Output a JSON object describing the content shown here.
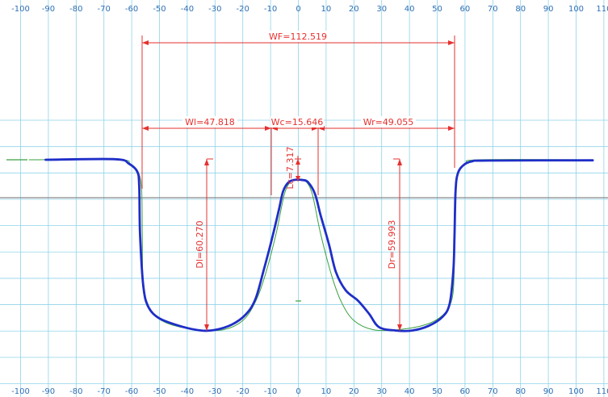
{
  "axis": {
    "x_ticks": [
      "-100",
      "-90",
      "-80",
      "-70",
      "-60",
      "-50",
      "-40",
      "-30",
      "-20",
      "-10",
      "0",
      "10",
      "20",
      "30",
      "40",
      "50",
      "60",
      "70",
      "80",
      "90",
      "100",
      "110"
    ],
    "x_tick_values": [
      -100,
      -90,
      -80,
      -70,
      -60,
      -50,
      -40,
      -30,
      -20,
      -10,
      0,
      10,
      20,
      30,
      40,
      50,
      60,
      70,
      80,
      90,
      100,
      110
    ],
    "x_range": [
      -105,
      110
    ],
    "y_range_top": 15,
    "y_range_bottom": -70,
    "grid": true
  },
  "colors": {
    "background": "#ffffff",
    "grid": "#8fd3e8",
    "tick_text": "#2f6fb5",
    "dimension": "#e5312f",
    "measured_profile": "#1f2ec7",
    "reference_profile": "#3aa040",
    "baseline": "#8a8a8a"
  },
  "dimensions": {
    "wf": "WF=112.519",
    "wl": "Wl=47.818",
    "wc": "Wc=15.646",
    "wr": "Wr=49.055",
    "dl": "Dl=60.270",
    "dr": "Dr=59.993",
    "lc": "Lc=7.317"
  },
  "profiles": {
    "reference": [
      [
        -97,
        0
      ],
      [
        -65,
        0
      ],
      [
        -60.5,
        -1.5
      ],
      [
        -57.5,
        -5
      ],
      [
        -56.4,
        -12
      ],
      [
        -56.2,
        -28
      ],
      [
        -56,
        -46
      ],
      [
        -55,
        -54
      ],
      [
        -52,
        -59
      ],
      [
        -46,
        -62.5
      ],
      [
        -36,
        -64.5
      ],
      [
        -27,
        -64.5
      ],
      [
        -20,
        -61
      ],
      [
        -15.5,
        -54
      ],
      [
        -12,
        -44
      ],
      [
        -8,
        -28
      ],
      [
        -5,
        -13
      ],
      [
        -2.5,
        -8
      ],
      [
        0,
        -7.5
      ],
      [
        2.5,
        -8
      ],
      [
        5,
        -13
      ],
      [
        8,
        -28
      ],
      [
        12,
        -44
      ],
      [
        15.5,
        -54
      ],
      [
        20,
        -61
      ],
      [
        27,
        -64.5
      ],
      [
        36,
        -64.5
      ],
      [
        46,
        -62.5
      ],
      [
        52,
        -59
      ],
      [
        55,
        -54
      ],
      [
        56,
        -46
      ],
      [
        56.2,
        -28
      ],
      [
        56.4,
        -12
      ],
      [
        57.5,
        -5
      ],
      [
        60.5,
        -1.5
      ],
      [
        65,
        0
      ],
      [
        106,
        0
      ]
    ],
    "measured": [
      [
        -91,
        0
      ],
      [
        -66,
        0.2
      ],
      [
        -61,
        -1.5
      ],
      [
        -58,
        -4.5
      ],
      [
        -57.3,
        -10
      ],
      [
        -57,
        -28
      ],
      [
        -55.8,
        -48
      ],
      [
        -54,
        -55.8
      ],
      [
        -50,
        -60.2
      ],
      [
        -42,
        -63.3
      ],
      [
        -35,
        -64.8
      ],
      [
        -30,
        -64.6
      ],
      [
        -24,
        -62.6
      ],
      [
        -19,
        -58.8
      ],
      [
        -15.5,
        -53
      ],
      [
        -12.5,
        -42
      ],
      [
        -9.5,
        -30
      ],
      [
        -7,
        -19
      ],
      [
        -5.5,
        -12
      ],
      [
        -3.5,
        -8.5
      ],
      [
        -1,
        -7.6
      ],
      [
        1.5,
        -7.7
      ],
      [
        3.5,
        -8.5
      ],
      [
        6,
        -13
      ],
      [
        8,
        -21
      ],
      [
        11,
        -32
      ],
      [
        13.5,
        -42.5
      ],
      [
        17,
        -49.5
      ],
      [
        21.5,
        -53.5
      ],
      [
        25.5,
        -58.5
      ],
      [
        29,
        -63.5
      ],
      [
        35,
        -64.8
      ],
      [
        41,
        -64.8
      ],
      [
        47,
        -63
      ],
      [
        52,
        -59.5
      ],
      [
        54.5,
        -54.5
      ],
      [
        55.8,
        -42
      ],
      [
        56.2,
        -30
      ],
      [
        56.6,
        -12
      ],
      [
        57.4,
        -5.2
      ],
      [
        59.5,
        -2
      ],
      [
        62.5,
        -0.6
      ],
      [
        68,
        -0.3
      ],
      [
        106,
        -0.2
      ]
    ]
  }
}
